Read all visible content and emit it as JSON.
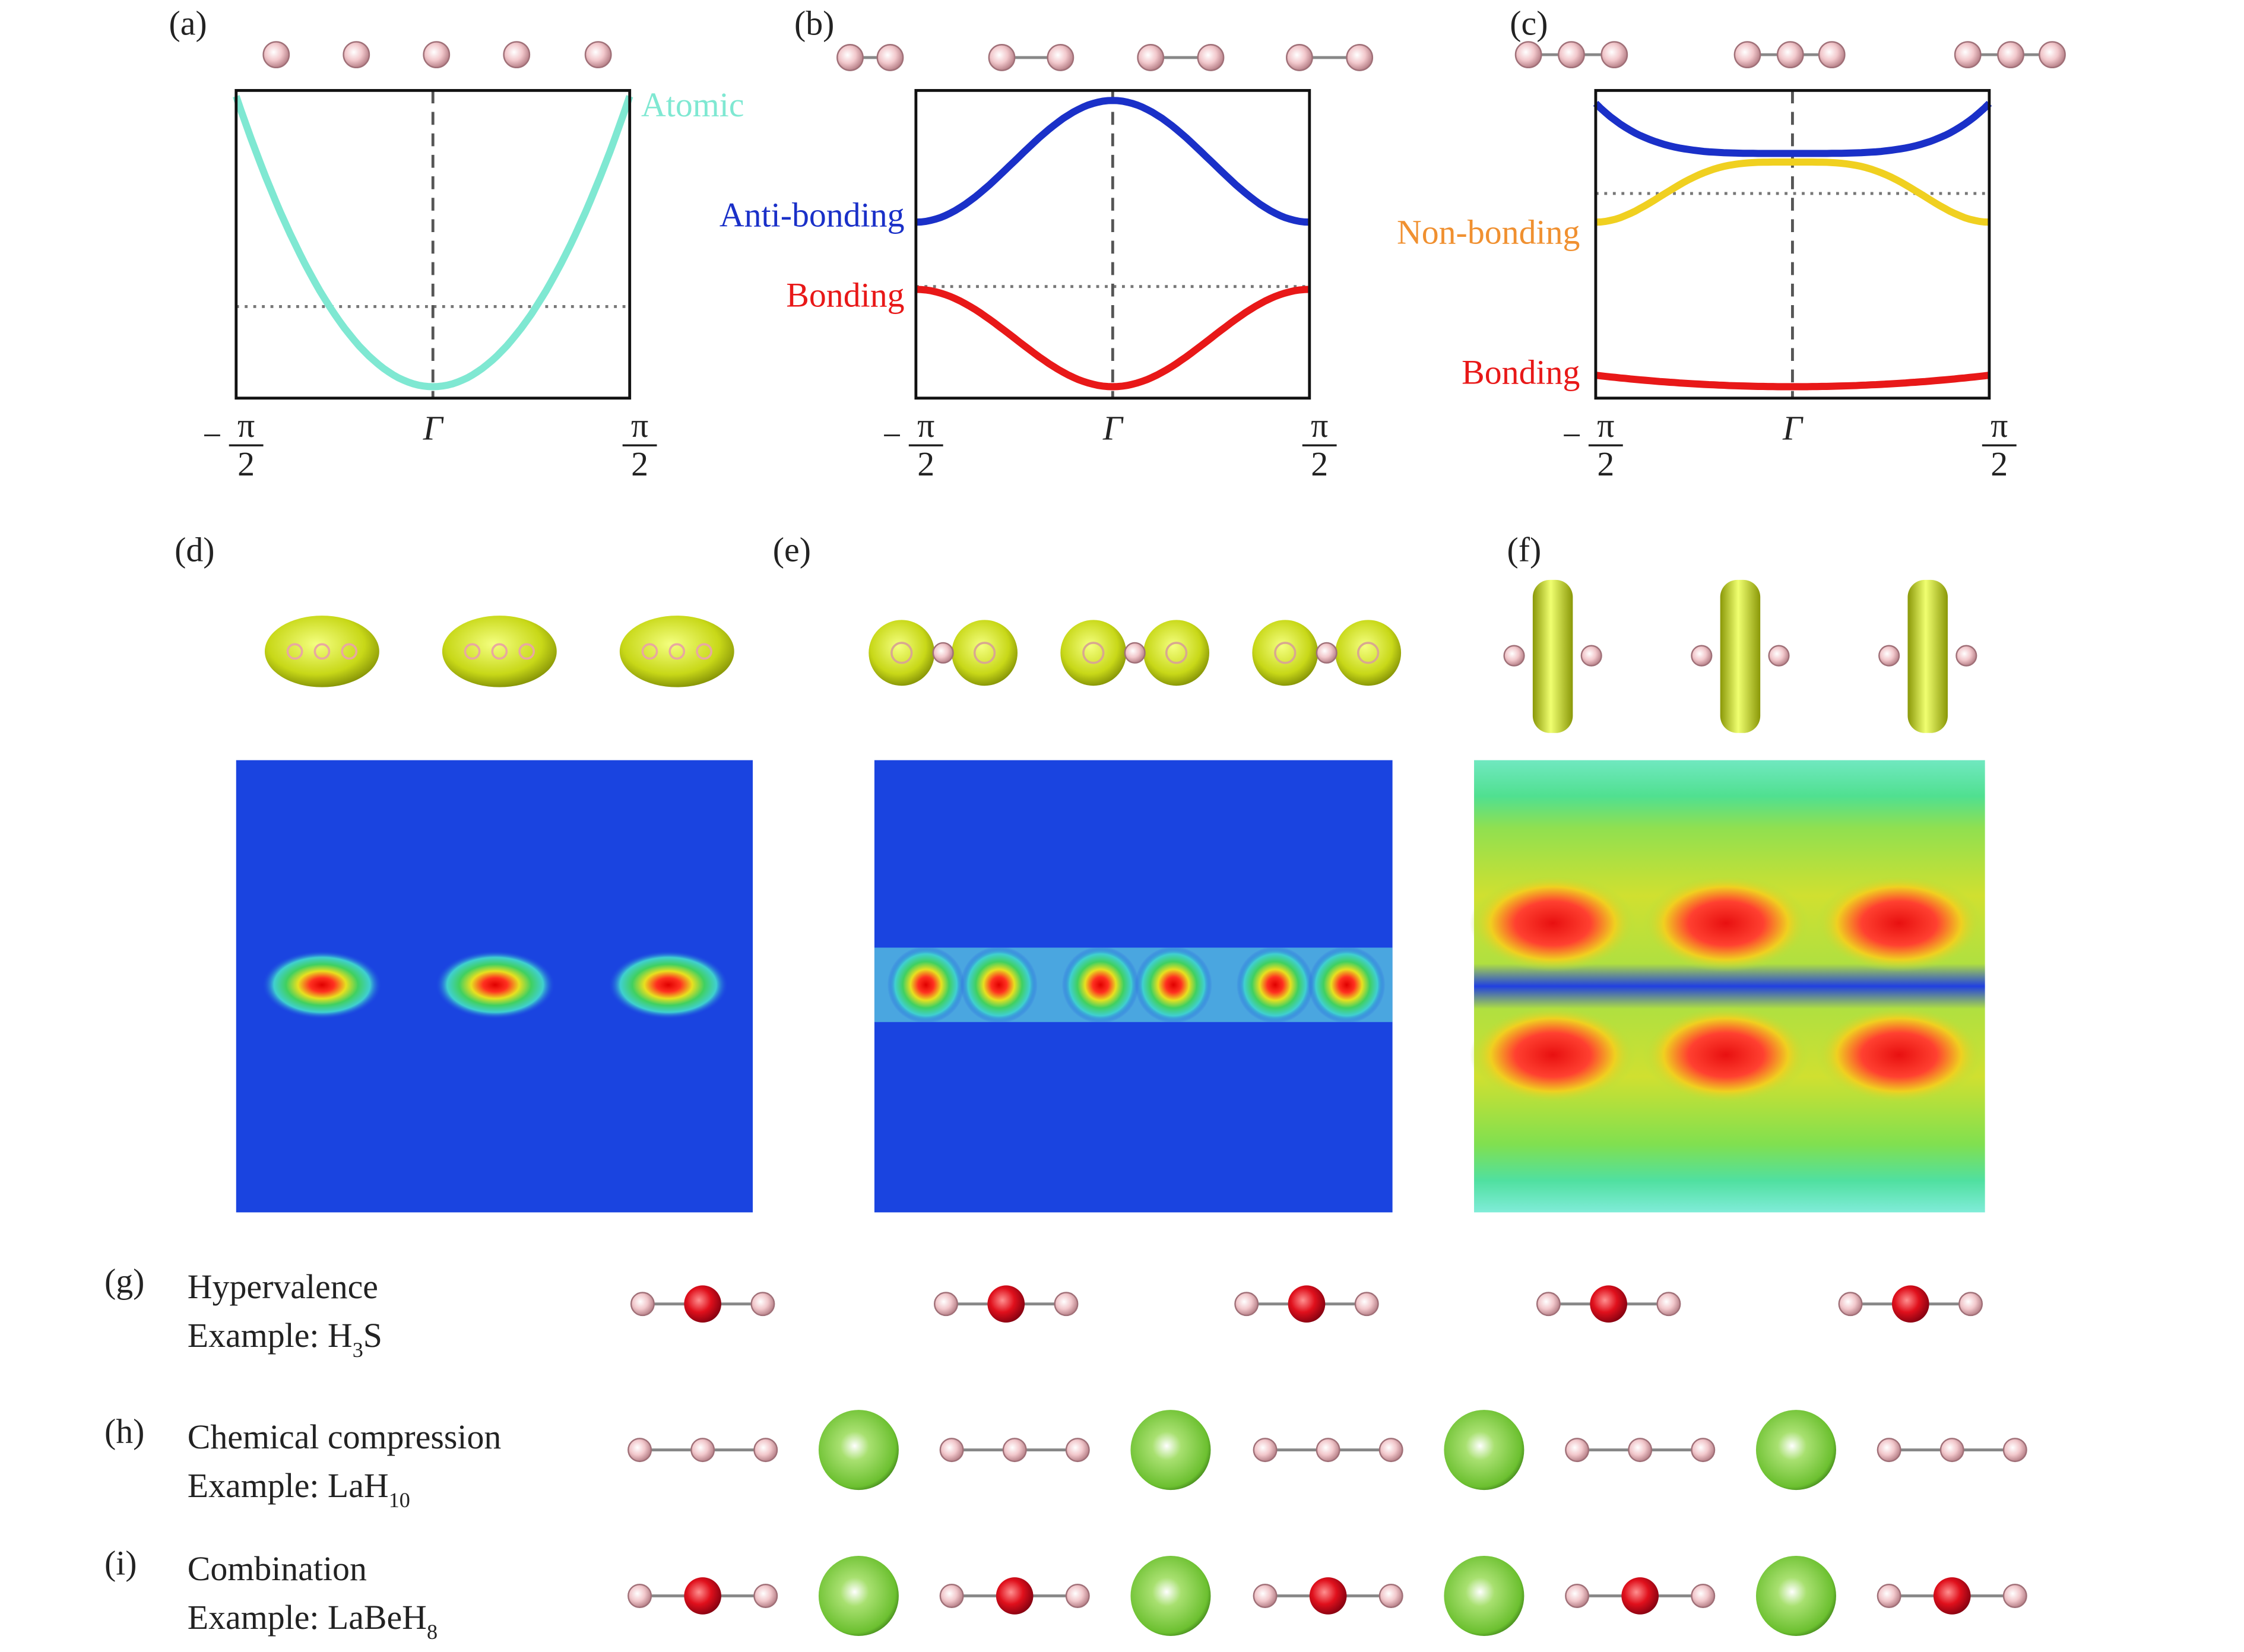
{
  "panels": {
    "a": "(a)",
    "b": "(b)",
    "c": "(c)",
    "d": "(d)",
    "e": "(e)",
    "f": "(f)"
  },
  "band_labels": {
    "a": [
      "Atomic"
    ],
    "b": [
      "Anti-bonding",
      "Bonding"
    ],
    "c": [
      "Non-bonding",
      "Bonding"
    ]
  },
  "axis": {
    "minus": "−",
    "pi": "π",
    "denominator": "2",
    "gamma": "Γ"
  },
  "rows": [
    {
      "label": "(g)",
      "title": "Hypervalence",
      "example": "Example: H",
      "subscript": "3",
      "suffix": "S"
    },
    {
      "label": "(h)",
      "title": "Chemical compression",
      "example": "Example: LaH",
      "subscript": "10"
    },
    {
      "label": "(i)",
      "title": "Combination",
      "example": "Example: LaBeH",
      "subscript": "8"
    }
  ]
}
